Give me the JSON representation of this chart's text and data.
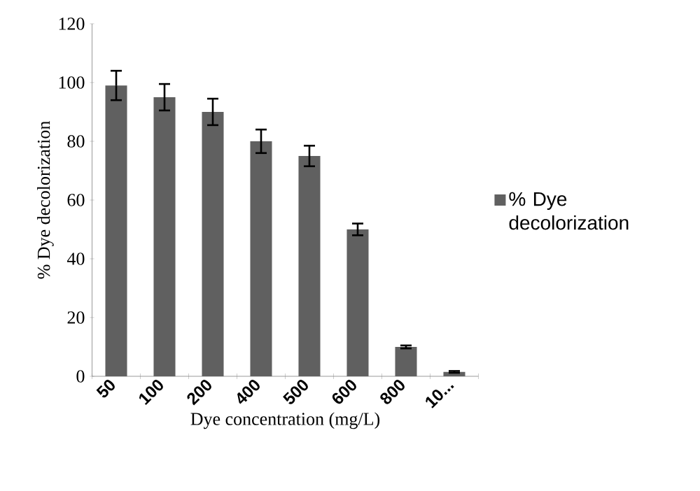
{
  "chart_data": {
    "type": "bar",
    "xlabel": "Dye concentration (mg/L)",
    "ylabel": "% Dye decolorization",
    "categories": [
      "50",
      "100",
      "200",
      "400",
      "500",
      "600",
      "800",
      "10..."
    ],
    "series": [
      {
        "name": "% Dye decolorization",
        "color": "#606060",
        "values": [
          99,
          95,
          90,
          80,
          75,
          50,
          10,
          1.5
        ],
        "errors": [
          5,
          4.5,
          4.5,
          4,
          3.5,
          2,
          0.5,
          0.3
        ]
      }
    ],
    "ylim": [
      0,
      120
    ],
    "yticks": [
      0,
      20,
      40,
      60,
      80,
      100,
      120
    ],
    "legend": "right",
    "grid": false
  }
}
